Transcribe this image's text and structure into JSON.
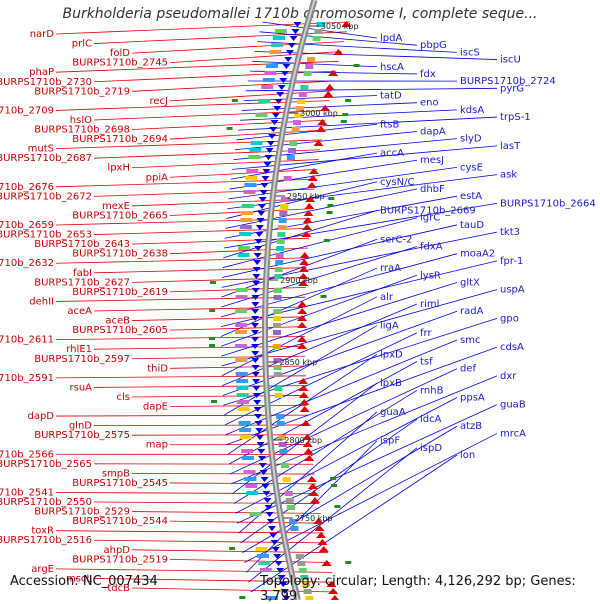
{
  "title": "Burkholderia pseudomallei 1710b chromosome I, complete seque...",
  "footer": {
    "accession": "Accession: NC_007434",
    "topology": "Topology: circular; Length: 4,126,292 bp; Genes: 3,799"
  },
  "colors": {
    "left_strand": "#e00000",
    "right_strand": "#0000dd",
    "backbone": "#888888",
    "rna": "#228b22"
  },
  "ticks": [
    {
      "label": "3050 kbp"
    },
    {
      "label": "3000 kbp"
    },
    {
      "label": "2950 kbp"
    },
    {
      "label": "2900 kbp"
    },
    {
      "label": "2850 kbp"
    },
    {
      "label": "2800 kbp"
    },
    {
      "label": "2750 kbp"
    }
  ],
  "left_labels": [
    "narD",
    "prlC",
    "folD",
    "BURPS1710b_2745",
    "phaP",
    "BURPS1710b_2730",
    "BURPS1710b_2719",
    "recJ",
    "BURPS1710b_2709",
    "hslO",
    "BURPS1710b_2698",
    "BURPS1710b_2694",
    "mutS",
    "BURPS1710b_2687",
    "lpxH",
    "ppiA",
    "BURPS1710b_2676",
    "BURPS1710b_2672",
    "mexE",
    "BURPS1710b_2665",
    "BURPS1710b_2659",
    "BURPS1710b_2653",
    "BURPS1710b_2643",
    "BURPS1710b_2638",
    "BURPS1710b_2632",
    "fabI",
    "BURPS1710b_2627",
    "BURPS1710b_2619",
    "dehII",
    "aceA",
    "aceB",
    "BURPS1710b_2605",
    "BURPS1710b_2611",
    "rhlE1",
    "BURPS1710b_2597",
    "thiD",
    "BURPS1710b_2591",
    "rsuA",
    "cls",
    "dapE",
    "dapD",
    "glnD",
    "BURPS1710b_2575",
    "map",
    "BURPS1710b_2566",
    "BURPS1710b_2565",
    "smpB",
    "BURPS1710b_2545",
    "BURPS1710b_2541",
    "BURPS1710b_2550",
    "BURPS1710b_2529",
    "BURPS1710b_2544",
    "toxR",
    "BURPS1710b_2516",
    "ahpD",
    "BURPS1710b_2519",
    "argE",
    "mscL",
    "tdcB"
  ],
  "right_labels": [
    "lpdA",
    "pbpG",
    "iscS",
    "iscU",
    "hscA",
    "fdx",
    "BURPS1710b_2724",
    "pyrG",
    "tatD",
    "eno",
    "kdsA",
    "trpS-1",
    "ftsB",
    "dapA",
    "slyD",
    "lasT",
    "accA",
    "mesJ",
    "cysE",
    "ask",
    "cysN/C",
    "dhbF",
    "estA",
    "BURPS1710b_2664",
    "BURPS1710b_2669",
    "lgrC",
    "tauD",
    "tkt3",
    "serC-2",
    "fdxA",
    "moaA2",
    "fpr-1",
    "rraA",
    "lysR",
    "gltX",
    "uspA",
    "alr",
    "riml",
    "radA",
    "gpo",
    "ligA",
    "frr",
    "smc",
    "cdsA",
    "lpxD",
    "tsf",
    "def",
    "dxr",
    "lpxB",
    "rnhB",
    "ppsA",
    "guaB",
    "guaA",
    "ldcA",
    "atzB",
    "mrcA",
    "ispF",
    "ispD",
    "lon"
  ]
}
